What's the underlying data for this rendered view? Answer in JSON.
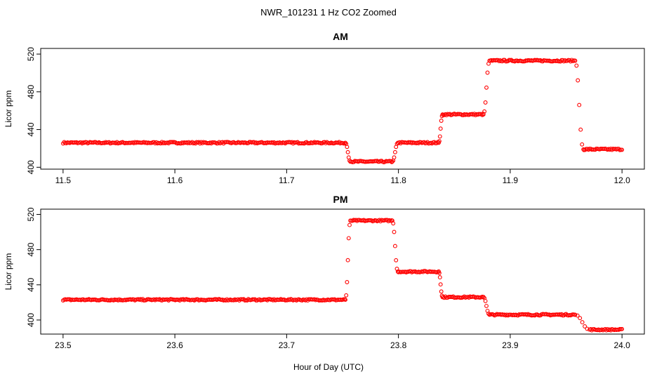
{
  "chart_data": {
    "title": "NWR_101231  1 Hz CO2 Zoomed",
    "xlabel": "Hour of Day (UTC)",
    "colors": {
      "points": "#ff0000",
      "axis": "#000000"
    },
    "panels": [
      {
        "type": "scatter",
        "title": "AM",
        "ylabel": "Licor ppm",
        "xlim": [
          11.48,
          12.02
        ],
        "ylim": [
          398,
          526
        ],
        "x_ticks": [
          "11.5",
          "11.6",
          "11.7",
          "11.8",
          "11.9",
          "12.0"
        ],
        "y_ticks": [
          "400",
          "440",
          "480",
          "520"
        ],
        "segments": [
          {
            "x": [
              11.5,
              11.752
            ],
            "y": 426
          },
          {
            "x": [
              11.758,
              11.794
            ],
            "y": 406
          },
          {
            "x": [
              11.8,
              11.836
            ],
            "y": 426
          },
          {
            "x": [
              11.84,
              11.876
            ],
            "y": 456
          },
          {
            "x": [
              11.882,
              11.958
            ],
            "y": 513
          },
          {
            "x": [
              11.966,
              12.0
            ],
            "y": 419
          }
        ],
        "transitions": [
          {
            "x": [
              11.7525,
              11.757
            ],
            "y": [
              426,
              406
            ]
          },
          {
            "x": [
              11.7945,
              11.7995
            ],
            "y": [
              406,
              426
            ]
          },
          {
            "x": [
              11.836,
              11.8395
            ],
            "y": [
              426,
              456
            ]
          },
          {
            "x": [
              11.876,
              11.8815
            ],
            "y": [
              456,
              513
            ]
          },
          {
            "x": [
              11.958,
              11.9655
            ],
            "y": [
              513,
              419
            ]
          }
        ]
      },
      {
        "type": "scatter",
        "title": "PM",
        "ylabel": "Licor ppm",
        "xlim": [
          23.48,
          24.02
        ],
        "ylim": [
          384,
          526
        ],
        "x_ticks": [
          "23.5",
          "23.6",
          "23.7",
          "23.8",
          "23.9",
          "24.0"
        ],
        "y_ticks": [
          "400",
          "440",
          "480",
          "520"
        ],
        "segments": [
          {
            "x": [
              23.5,
              23.752
            ],
            "y": 423
          },
          {
            "x": [
              23.758,
              23.794
            ],
            "y": 513
          },
          {
            "x": [
              23.8,
              23.836
            ],
            "y": 455
          },
          {
            "x": [
              23.84,
              23.876
            ],
            "y": 426
          },
          {
            "x": [
              23.882,
              23.958
            ],
            "y": 406
          },
          {
            "x": [
              23.972,
              24.0
            ],
            "y": 389
          }
        ],
        "transitions": [
          {
            "x": [
              23.7525,
              23.757
            ],
            "y": [
              423,
              513
            ]
          },
          {
            "x": [
              23.7945,
              23.7995
            ],
            "y": [
              513,
              455
            ]
          },
          {
            "x": [
              23.836,
              23.8395
            ],
            "y": [
              455,
              426
            ]
          },
          {
            "x": [
              23.876,
              23.8815
            ],
            "y": [
              426,
              406
            ]
          },
          {
            "x": [
              23.958,
              23.971
            ],
            "y": [
              406,
              389
            ]
          }
        ]
      }
    ]
  }
}
